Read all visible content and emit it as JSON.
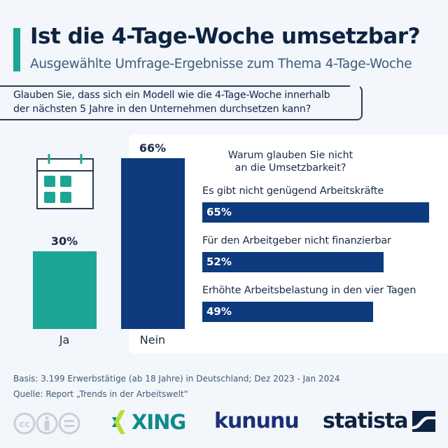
{
  "header": {
    "title": "Ist die 4-Tage-Woche umsetzbar?",
    "subtitle": "Ausgewählte Umfrage-Ergebnisse zum Thema 4-Tage-Woche"
  },
  "question": {
    "line1": "Glauben Sie, dass sich ein Modell wie die 4-Tage-Woche innerhalb",
    "line2": "der nächsten 5 Jahre in den Unternehmen durchsetzen kann?"
  },
  "colors": {
    "accent": "#1ba594",
    "navy": "#0e3a7e",
    "ja": "#1ba594",
    "nein": "#0e3a7e"
  },
  "chart_data": [
    {
      "type": "bar",
      "title": "Glauben Sie, dass sich ein Modell wie die 4-Tage-Woche innerhalb der nächsten 5 Jahre in den Unternehmen durchsetzen kann?",
      "categories": [
        "Ja",
        "Nein"
      ],
      "values": [
        30,
        66
      ],
      "value_labels": [
        "30%",
        "66%"
      ],
      "unit": "%",
      "ylim": [
        0,
        66
      ]
    },
    {
      "type": "bar",
      "orientation": "horizontal",
      "title_line1": "Warum glauben Sie nicht",
      "title_line2": "an die Umsetzbarkeit?",
      "categories": [
        "Es gibt nicht genügend Arbeitskräfte",
        "Für den Arbeitgeber nicht finanzierbar",
        "Erhöhte Arbeitsbelastung in den vier Tagen"
      ],
      "values": [
        65,
        52,
        49
      ],
      "value_labels": [
        "65%",
        "52%",
        "49%"
      ],
      "unit": "%",
      "xlim": [
        0,
        65
      ]
    }
  ],
  "footer": {
    "basis": "Basis: 3.199 Erwerbstätige (ab 18 Jahre) in Deutschland; Dez 2023 - Jan 2024",
    "source": "Quelle: Report „Trends in der Arbeitswelt“",
    "logos": {
      "xing": "XING",
      "kununu": "kununu",
      "statista": "statista"
    },
    "license_icons": [
      "cc-icon",
      "by-icon",
      "nd-icon"
    ]
  }
}
